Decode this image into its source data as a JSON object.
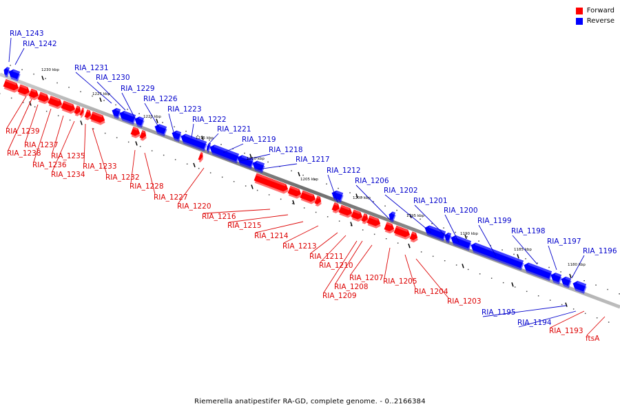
{
  "caption": "Riemerella anatipestifer RA-GD, complete genome. - 0..2166384",
  "legend": [
    {
      "label": "Forward",
      "color": "#ff0000"
    },
    {
      "label": "Reverse",
      "color": "#0000ff"
    }
  ],
  "colors": {
    "forward": "#ff0000",
    "reverse": "#0000ff",
    "backbone": "#808080"
  },
  "scale_labels": [
    "1230 kbp",
    "1225 kbp",
    "1220 kbp",
    "1215 kbp",
    "1210 kbp",
    "1205 kbp",
    "1200 kbp",
    "1195 kbp",
    "1190 kbp",
    "1185 kbp",
    "1180 kbp"
  ],
  "genes": [
    {
      "name": "RIA_1243",
      "strand": "reverse"
    },
    {
      "name": "RIA_1242",
      "strand": "reverse"
    },
    {
      "name": "RIA_1231",
      "strand": "reverse"
    },
    {
      "name": "RIA_1230",
      "strand": "reverse"
    },
    {
      "name": "RIA_1229",
      "strand": "reverse"
    },
    {
      "name": "RIA_1226",
      "strand": "reverse"
    },
    {
      "name": "RIA_1223",
      "strand": "reverse"
    },
    {
      "name": "RIA_1222",
      "strand": "reverse"
    },
    {
      "name": "RIA_1221",
      "strand": "reverse"
    },
    {
      "name": "RIA_1219",
      "strand": "reverse"
    },
    {
      "name": "RIA_1218",
      "strand": "reverse"
    },
    {
      "name": "RIA_1217",
      "strand": "reverse"
    },
    {
      "name": "RIA_1212",
      "strand": "reverse"
    },
    {
      "name": "RIA_1206",
      "strand": "reverse"
    },
    {
      "name": "RIA_1202",
      "strand": "reverse"
    },
    {
      "name": "RIA_1201",
      "strand": "reverse"
    },
    {
      "name": "RIA_1200",
      "strand": "reverse"
    },
    {
      "name": "RIA_1199",
      "strand": "reverse"
    },
    {
      "name": "RIA_1198",
      "strand": "reverse"
    },
    {
      "name": "RIA_1197",
      "strand": "reverse"
    },
    {
      "name": "RIA_1196",
      "strand": "reverse"
    },
    {
      "name": "RIA_1195",
      "strand": "reverse"
    },
    {
      "name": "RIA_1194",
      "strand": "reverse"
    },
    {
      "name": "RIA_1239",
      "strand": "forward"
    },
    {
      "name": "RIA_1237",
      "strand": "forward"
    },
    {
      "name": "RIA_1238",
      "strand": "forward"
    },
    {
      "name": "RIA_1235",
      "strand": "forward"
    },
    {
      "name": "RIA_1236",
      "strand": "forward"
    },
    {
      "name": "RIA_1234",
      "strand": "forward"
    },
    {
      "name": "RIA_1233",
      "strand": "forward"
    },
    {
      "name": "RIA_1232",
      "strand": "forward"
    },
    {
      "name": "RIA_1228",
      "strand": "forward"
    },
    {
      "name": "RIA_1227",
      "strand": "forward"
    },
    {
      "name": "RIA_1220",
      "strand": "forward"
    },
    {
      "name": "RIA_1216",
      "strand": "forward"
    },
    {
      "name": "RIA_1215",
      "strand": "forward"
    },
    {
      "name": "RIA_1214",
      "strand": "forward"
    },
    {
      "name": "RIA_1213",
      "strand": "forward"
    },
    {
      "name": "RIA_1211",
      "strand": "forward"
    },
    {
      "name": "RIA_1210",
      "strand": "forward"
    },
    {
      "name": "RIA_1208",
      "strand": "forward"
    },
    {
      "name": "RIA_1207",
      "strand": "forward"
    },
    {
      "name": "RIA_1209",
      "strand": "forward"
    },
    {
      "name": "RIA_1205",
      "strand": "forward"
    },
    {
      "name": "RIA_1204",
      "strand": "forward"
    },
    {
      "name": "RIA_1203",
      "strand": "forward"
    },
    {
      "name": "RIA_1193",
      "strand": "forward"
    },
    {
      "name": "ftsA",
      "strand": "forward"
    }
  ]
}
